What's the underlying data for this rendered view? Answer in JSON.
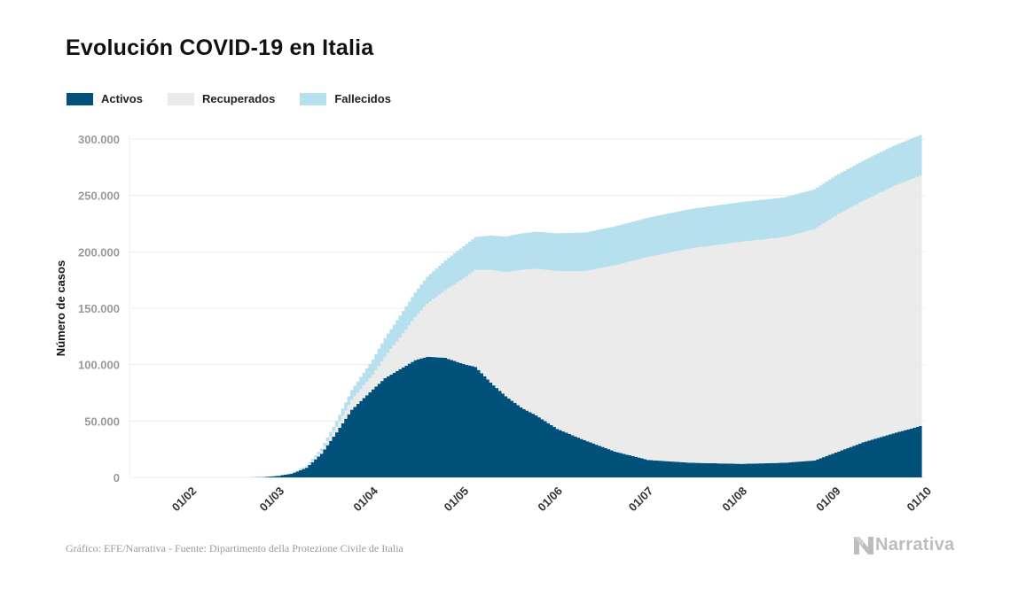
{
  "title": "Evolución COVID-19 en Italia",
  "legend": {
    "items": [
      {
        "label": "Activos",
        "color": "#01517a"
      },
      {
        "label": "Recuperados",
        "color": "#ebebeb"
      },
      {
        "label": "Fallecidos",
        "color": "#b7e0ef"
      }
    ]
  },
  "source": "Gráfico: EFE/Narrativa - Fuente: Dipartimento della Protezione Civile de Italia",
  "logo": {
    "text": "Narrativa",
    "icon": "narrativa-logo-icon"
  },
  "chart_data": {
    "type": "area",
    "stacked": true,
    "ylabel": "Número de casos",
    "ylim": [
      0,
      300000
    ],
    "yticks": [
      0,
      50000,
      100000,
      150000,
      200000,
      250000,
      300000
    ],
    "ytick_labels": [
      "0",
      "50.000",
      "100.000",
      "150.000",
      "200.000",
      "250.000",
      "300.000"
    ],
    "xlim": [
      "2020-01-12",
      "2020-10-01"
    ],
    "xticks": [
      "2020-02-01",
      "2020-03-01",
      "2020-04-01",
      "2020-05-01",
      "2020-06-01",
      "2020-07-01",
      "2020-08-01",
      "2020-09-01",
      "2020-10-01"
    ],
    "xtick_labels": [
      "01/02",
      "01/03",
      "01/04",
      "01/05",
      "01/06",
      "01/07",
      "01/08",
      "01/09",
      "01/10"
    ],
    "grid": true,
    "legend_position": "top-left",
    "x": [
      "2020-02-20",
      "2020-02-25",
      "2020-03-01",
      "2020-03-05",
      "2020-03-10",
      "2020-03-15",
      "2020-03-20",
      "2020-03-25",
      "2020-04-01",
      "2020-04-05",
      "2020-04-10",
      "2020-04-15",
      "2020-04-19",
      "2020-04-25",
      "2020-05-01",
      "2020-05-05",
      "2020-05-10",
      "2020-05-15",
      "2020-05-20",
      "2020-05-25",
      "2020-06-01",
      "2020-06-10",
      "2020-06-20",
      "2020-07-01",
      "2020-07-15",
      "2020-08-01",
      "2020-08-15",
      "2020-08-25",
      "2020-09-01",
      "2020-09-10",
      "2020-09-20",
      "2020-09-29"
    ],
    "series": [
      {
        "name": "Activos",
        "color": "#01517a",
        "values": [
          0,
          300,
          1500,
          3200,
          8500,
          21000,
          40000,
          60000,
          78000,
          88000,
          96000,
          104000,
          107000,
          106000,
          100500,
          98000,
          84000,
          72000,
          62000,
          55000,
          43000,
          33000,
          23000,
          15500,
          13000,
          12000,
          13000,
          15000,
          22000,
          31000,
          39000,
          45500
        ]
      },
      {
        "name": "Recuperados",
        "color": "#ebebeb",
        "values": [
          0,
          0,
          150,
          500,
          1100,
          2400,
          5100,
          8800,
          13000,
          19000,
          28000,
          38000,
          47000,
          60000,
          76000,
          86000,
          100000,
          110000,
          122000,
          130000,
          140000,
          150000,
          165000,
          180000,
          190000,
          197000,
          200000,
          205000,
          210000,
          214000,
          219000,
          222000
        ]
      },
      {
        "name": "Fallecidos",
        "color": "#b7e0ef",
        "values": [
          0,
          7,
          80,
          180,
          700,
          2200,
          5000,
          8600,
          13500,
          16500,
          19500,
          22000,
          24000,
          26500,
          28500,
          29200,
          30500,
          31500,
          32300,
          32800,
          33500,
          34100,
          34600,
          34800,
          35000,
          35200,
          35300,
          35400,
          35500,
          35600,
          35800,
          36000
        ]
      }
    ]
  }
}
